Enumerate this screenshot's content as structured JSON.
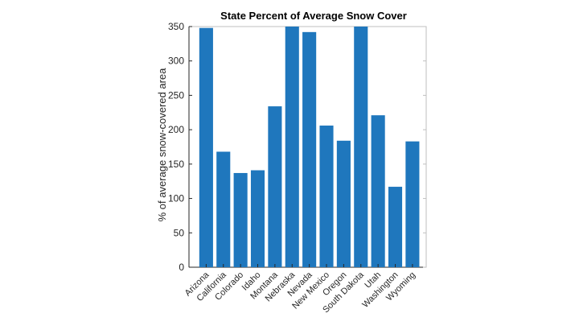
{
  "chart_data": {
    "type": "bar",
    "title": "State Percent of Average Snow Cover",
    "xlabel": "",
    "ylabel": "% of average snow-covered area",
    "categories": [
      "Arizona",
      "California",
      "Colorado",
      "Idaho",
      "Montana",
      "Nebraska",
      "Nevada",
      "New Mexico",
      "Oregon",
      "South Dakota",
      "Utah",
      "Washington",
      "Wyoming"
    ],
    "values": [
      348,
      168,
      137,
      141,
      234,
      350,
      342,
      206,
      184,
      350,
      221,
      117,
      183
    ],
    "ylim": [
      0,
      350
    ],
    "yticks": [
      0,
      50,
      100,
      150,
      200,
      250,
      300,
      350
    ],
    "grid": false,
    "legend": "none",
    "bar_color": "#1f77bd",
    "axis_color": "#262626",
    "box_color": "#bfbfbf"
  }
}
